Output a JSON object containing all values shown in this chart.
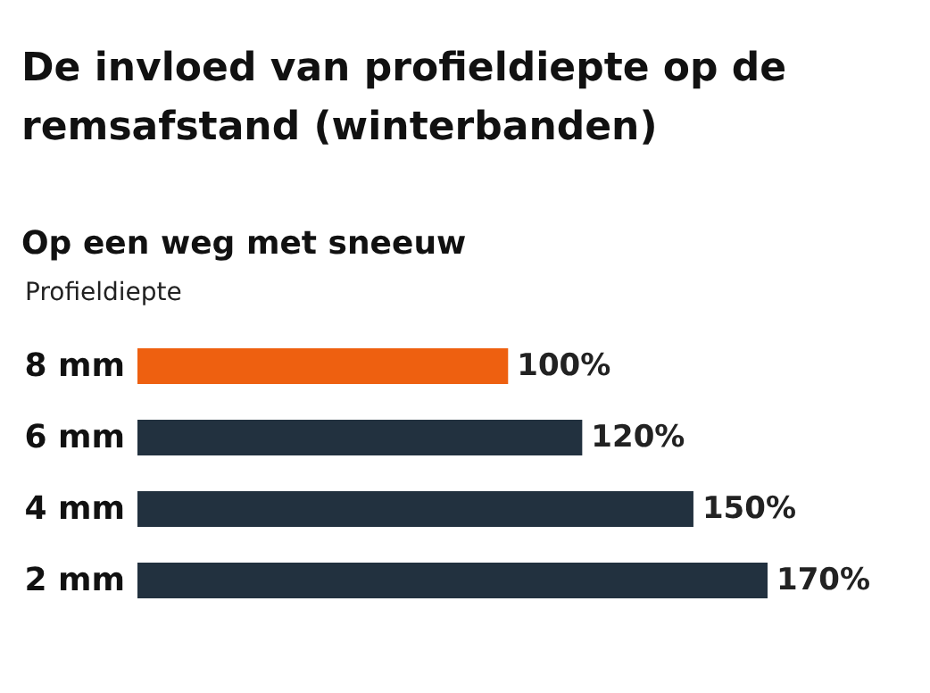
{
  "chart_data": {
    "type": "bar",
    "orientation": "horizontal",
    "title": "De invloed van profieldiepte op de remsafstand (winterbanden)",
    "subtitle": "Op een weg met sneeuw",
    "ylabel": "Profieldiepte",
    "categories": [
      "8 mm",
      "6 mm",
      "4 mm",
      "2 mm"
    ],
    "values": [
      100,
      120,
      150,
      170
    ],
    "colors": [
      "#ee6010",
      "#22313f",
      "#22313f",
      "#22313f"
    ],
    "value_labels": [
      "100%",
      "120%",
      "150%",
      "170%"
    ]
  }
}
